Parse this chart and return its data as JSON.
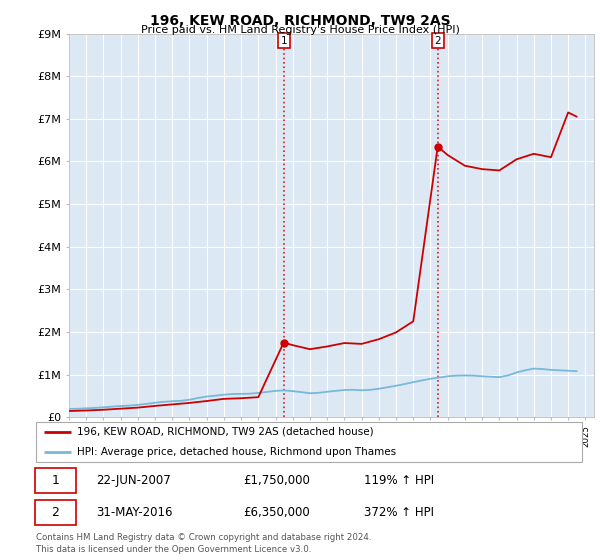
{
  "title": "196, KEW ROAD, RICHMOND, TW9 2AS",
  "subtitle": "Price paid vs. HM Land Registry's House Price Index (HPI)",
  "ylim": [
    0,
    9000000
  ],
  "yticks": [
    0,
    1000000,
    2000000,
    3000000,
    4000000,
    5000000,
    6000000,
    7000000,
    8000000,
    9000000
  ],
  "ytick_labels": [
    "£0",
    "£1M",
    "£2M",
    "£3M",
    "£4M",
    "£5M",
    "£6M",
    "£7M",
    "£8M",
    "£9M"
  ],
  "plot_bg_color": "#dce9f5",
  "outer_bg_color": "#ffffff",
  "transaction1_date": 2007.47,
  "transaction1_price": 1750000,
  "transaction1_label": "1",
  "transaction2_date": 2016.42,
  "transaction2_price": 6350000,
  "transaction2_label": "2",
  "hpi_line_color": "#7ab8d9",
  "price_line_color": "#cc0000",
  "vline_color": "#cc0000",
  "grid_color": "#ffffff",
  "legend_entry1": "196, KEW ROAD, RICHMOND, TW9 2AS (detached house)",
  "legend_entry2": "HPI: Average price, detached house, Richmond upon Thames",
  "table_row1_num": "1",
  "table_row1_date": "22-JUN-2007",
  "table_row1_price": "£1,750,000",
  "table_row1_hpi": "119% ↑ HPI",
  "table_row2_num": "2",
  "table_row2_date": "31-MAY-2016",
  "table_row2_price": "£6,350,000",
  "table_row2_hpi": "372% ↑ HPI",
  "footer": "Contains HM Land Registry data © Crown copyright and database right 2024.\nThis data is licensed under the Open Government Licence v3.0.",
  "hpi_data_x": [
    1995.0,
    1995.5,
    1996.0,
    1996.5,
    1997.0,
    1997.5,
    1998.0,
    1998.5,
    1999.0,
    1999.5,
    2000.0,
    2000.5,
    2001.0,
    2001.5,
    2002.0,
    2002.5,
    2003.0,
    2003.5,
    2004.0,
    2004.5,
    2005.0,
    2005.5,
    2006.0,
    2006.5,
    2007.0,
    2007.5,
    2008.0,
    2008.5,
    2009.0,
    2009.5,
    2010.0,
    2010.5,
    2011.0,
    2011.5,
    2012.0,
    2012.5,
    2013.0,
    2013.5,
    2014.0,
    2014.5,
    2015.0,
    2015.5,
    2016.0,
    2016.5,
    2017.0,
    2017.5,
    2018.0,
    2018.5,
    2019.0,
    2019.5,
    2020.0,
    2020.5,
    2021.0,
    2021.5,
    2022.0,
    2022.5,
    2023.0,
    2023.5,
    2024.0,
    2024.5
  ],
  "hpi_data_y": [
    195000,
    198000,
    208000,
    218000,
    232000,
    248000,
    262000,
    272000,
    290000,
    312000,
    340000,
    360000,
    375000,
    385000,
    410000,
    450000,
    485000,
    505000,
    528000,
    544000,
    548000,
    552000,
    570000,
    592000,
    618000,
    628000,
    612000,
    588000,
    562000,
    572000,
    598000,
    618000,
    638000,
    643000,
    632000,
    642000,
    668000,
    702000,
    738000,
    778000,
    822000,
    862000,
    902000,
    930000,
    960000,
    975000,
    980000,
    975000,
    960000,
    950000,
    940000,
    980000,
    1050000,
    1100000,
    1140000,
    1130000,
    1110000,
    1100000,
    1090000,
    1080000
  ],
  "price_data_x": [
    1995.0,
    1996.0,
    1997.0,
    1998.0,
    1999.0,
    2000.0,
    2001.0,
    2002.0,
    2003.0,
    2004.0,
    2005.0,
    2006.0,
    2007.47,
    2008.0,
    2009.0,
    2010.0,
    2011.0,
    2012.0,
    2013.0,
    2014.0,
    2015.0,
    2016.42,
    2017.0,
    2018.0,
    2019.0,
    2020.0,
    2021.0,
    2022.0,
    2023.0,
    2024.0,
    2024.5
  ],
  "price_data_y": [
    145000,
    157000,
    175000,
    200000,
    225000,
    265000,
    300000,
    335000,
    380000,
    430000,
    445000,
    470000,
    1750000,
    1690000,
    1595000,
    1660000,
    1740000,
    1720000,
    1830000,
    1990000,
    2250000,
    6350000,
    6150000,
    5900000,
    5820000,
    5790000,
    6050000,
    6180000,
    6100000,
    7150000,
    7050000
  ]
}
